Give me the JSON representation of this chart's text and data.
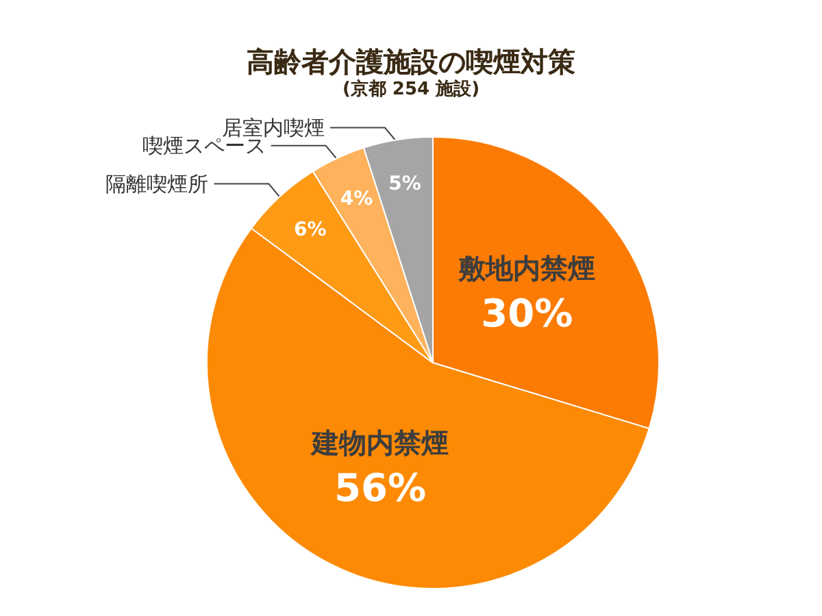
{
  "chart_data": {
    "type": "pie",
    "title": "高齢者介護施設の喫煙対策",
    "subtitle": "(京都 254 施設)",
    "categories": [
      "敷地内禁煙",
      "建物内禁煙",
      "隔離喫煙所",
      "喫煙スペース",
      "居室内喫煙"
    ],
    "values": [
      30,
      56,
      6,
      4,
      5
    ],
    "value_labels": [
      "30%",
      "56%",
      "6%",
      "4%",
      "5%"
    ],
    "colors": [
      "#fb7b04",
      "#fd8a04",
      "#fe9a14",
      "#feb25c",
      "#a5a5a5"
    ],
    "legend": false
  }
}
